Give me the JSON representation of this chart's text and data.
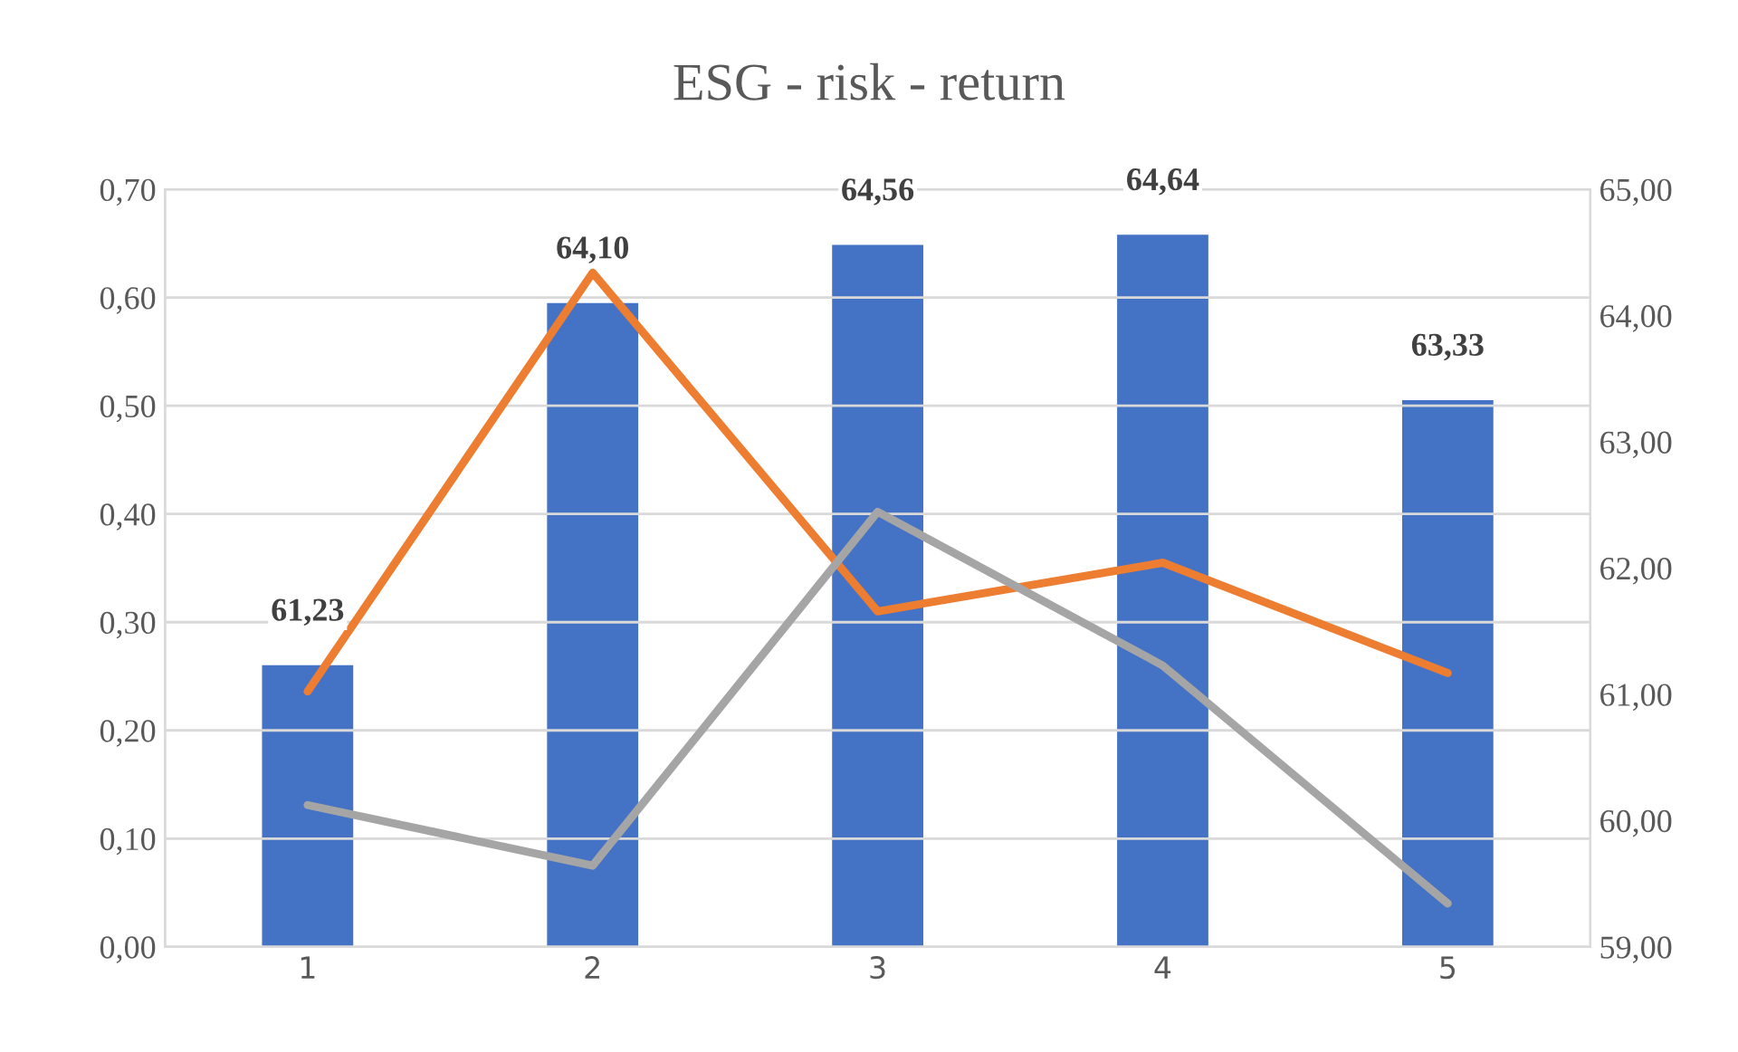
{
  "chart_data": {
    "type": "bar",
    "title": "ESG - risk - return",
    "categories": [
      "1",
      "2",
      "3",
      "4",
      "5"
    ],
    "series": [
      {
        "axis": "y2",
        "color": "#4472c4",
        "values": [
          61.23,
          64.1,
          64.56,
          64.64,
          63.33
        ],
        "value_labels": [
          "61,23",
          "64,10",
          "64,56",
          "64,64",
          "63,33"
        ]
      },
      {
        "type": "line",
        "color": "#ed7d31",
        "values": [
          0.236,
          0.623,
          0.31,
          0.355,
          0.253
        ]
      },
      {
        "type": "line",
        "color": "#a5a5a5",
        "values": [
          0.131,
          0.075,
          0.402,
          0.26,
          0.04
        ]
      }
    ],
    "ylim": [
      0,
      0.7
    ],
    "yticks": [
      {
        "value": 0,
        "label": "0,00"
      },
      {
        "value": 0.1,
        "label": "0,10"
      },
      {
        "value": 0.2,
        "label": "0,20"
      },
      {
        "value": 0.3,
        "label": "0,30"
      },
      {
        "value": 0.4,
        "label": "0,40"
      },
      {
        "value": 0.5,
        "label": "0,50"
      },
      {
        "value": 0.6,
        "label": "0,60"
      },
      {
        "value": 0.7,
        "label": "0,70"
      }
    ],
    "y2lim": [
      59,
      65
    ],
    "y2ticks": [
      {
        "value": 59,
        "label": "59,00"
      },
      {
        "value": 60,
        "label": "60,00"
      },
      {
        "value": 61,
        "label": "61,00"
      },
      {
        "value": 62,
        "label": "62,00"
      },
      {
        "value": 63,
        "label": "63,00"
      },
      {
        "value": 64,
        "label": "64,00"
      },
      {
        "value": 65,
        "label": "65,00"
      }
    ],
    "grid": "y",
    "legend": false,
    "marker": "none",
    "line_style": "solid"
  }
}
